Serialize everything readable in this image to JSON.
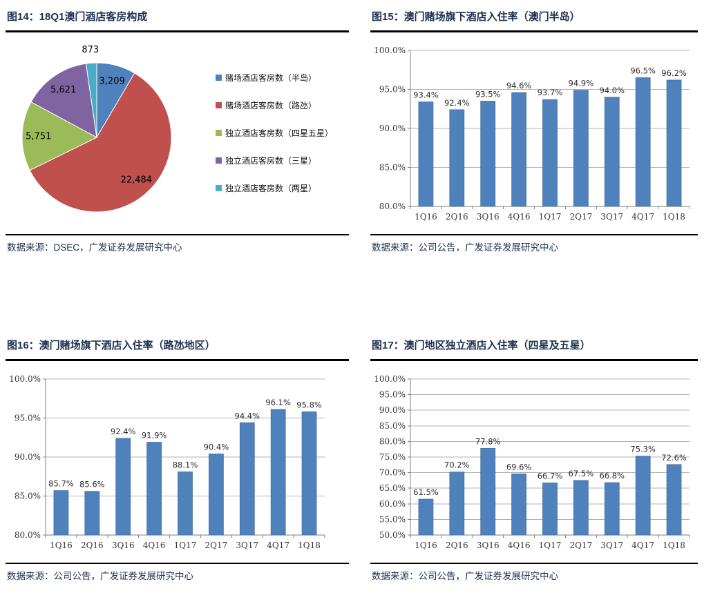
{
  "theme": {
    "title_color": "#1c3150",
    "bar_color": "#4F81BD",
    "grid_color": "#b3b3b3",
    "axis_color": "#7f7f7f",
    "label_color": "#333333"
  },
  "chart_data": [
    {
      "id": "fig14",
      "type": "pie",
      "title": "图14：18Q1澳门酒店客房构成",
      "source": "数据来源：DSEC，广发证券发展研究中心",
      "labels": [
        "赌场酒店客房数（半岛）",
        "赌场酒店客房数（路氹）",
        "独立酒店客房数（四星五星）",
        "独立酒店客房数（三星）",
        "独立酒店客房数（两星）"
      ],
      "values": [
        3209,
        22484,
        5751,
        5621,
        873
      ],
      "display_values": [
        "3,209",
        "22,484",
        "5,751",
        "5,621",
        "873"
      ],
      "colors": [
        "#4F81BD",
        "#C0504D",
        "#9BBB59",
        "#8064A2",
        "#4BACC6"
      ],
      "legend_position": "right"
    },
    {
      "id": "fig15",
      "type": "bar",
      "title": "图15：澳门赌场旗下酒店入住率（澳门半岛）",
      "source": "数据来源：公司公告，广发证券发展研究中心",
      "categories": [
        "1Q16",
        "2Q16",
        "3Q16",
        "4Q16",
        "1Q17",
        "2Q17",
        "3Q17",
        "4Q17",
        "1Q18"
      ],
      "values": [
        93.4,
        92.4,
        93.5,
        94.6,
        93.7,
        94.9,
        94.0,
        96.5,
        96.2
      ],
      "display_values": [
        "93.4%",
        "92.4%",
        "93.5%",
        "94.6%",
        "93.7%",
        "94.9%",
        "94.0%",
        "96.5%",
        "96.2%"
      ],
      "ylim": [
        80,
        100
      ],
      "ytick_step": 5,
      "bar_color": "#4F81BD",
      "grid": true,
      "legend_position": "none"
    },
    {
      "id": "fig16",
      "type": "bar",
      "title": "图16：澳门赌场旗下酒店入住率（路氹地区）",
      "source": "数据来源：公司公告，广发证券发展研究中心",
      "categories": [
        "1Q16",
        "2Q16",
        "3Q16",
        "4Q16",
        "1Q17",
        "2Q17",
        "3Q17",
        "4Q17",
        "1Q18"
      ],
      "values": [
        85.7,
        85.6,
        92.4,
        91.9,
        88.1,
        90.4,
        94.4,
        96.1,
        95.8
      ],
      "display_values": [
        "85.7%",
        "85.6%",
        "92.4%",
        "91.9%",
        "88.1%",
        "90.4%",
        "94.4%",
        "96.1%",
        "95.8%"
      ],
      "ylim": [
        80,
        100
      ],
      "ytick_step": 5,
      "bar_color": "#4F81BD",
      "grid": true,
      "legend_position": "none"
    },
    {
      "id": "fig17",
      "type": "bar",
      "title": "图17：澳门地区独立酒店入住率（四星及五星）",
      "source": "数据来源：公司公告，广发证券发展研究中心",
      "categories": [
        "1Q16",
        "2Q16",
        "3Q16",
        "4Q16",
        "1Q17",
        "2Q17",
        "3Q17",
        "4Q17",
        "1Q18"
      ],
      "values": [
        61.5,
        70.2,
        77.8,
        69.6,
        66.7,
        67.5,
        66.8,
        75.3,
        72.6
      ],
      "display_values": [
        "61.5%",
        "70.2%",
        "77.8%",
        "69.6%",
        "66.7%",
        "67.5%",
        "66.8%",
        "75.3%",
        "72.6%"
      ],
      "ylim": [
        50,
        100
      ],
      "ytick_step": 5,
      "bar_color": "#4F81BD",
      "grid": true,
      "legend_position": "none"
    }
  ]
}
